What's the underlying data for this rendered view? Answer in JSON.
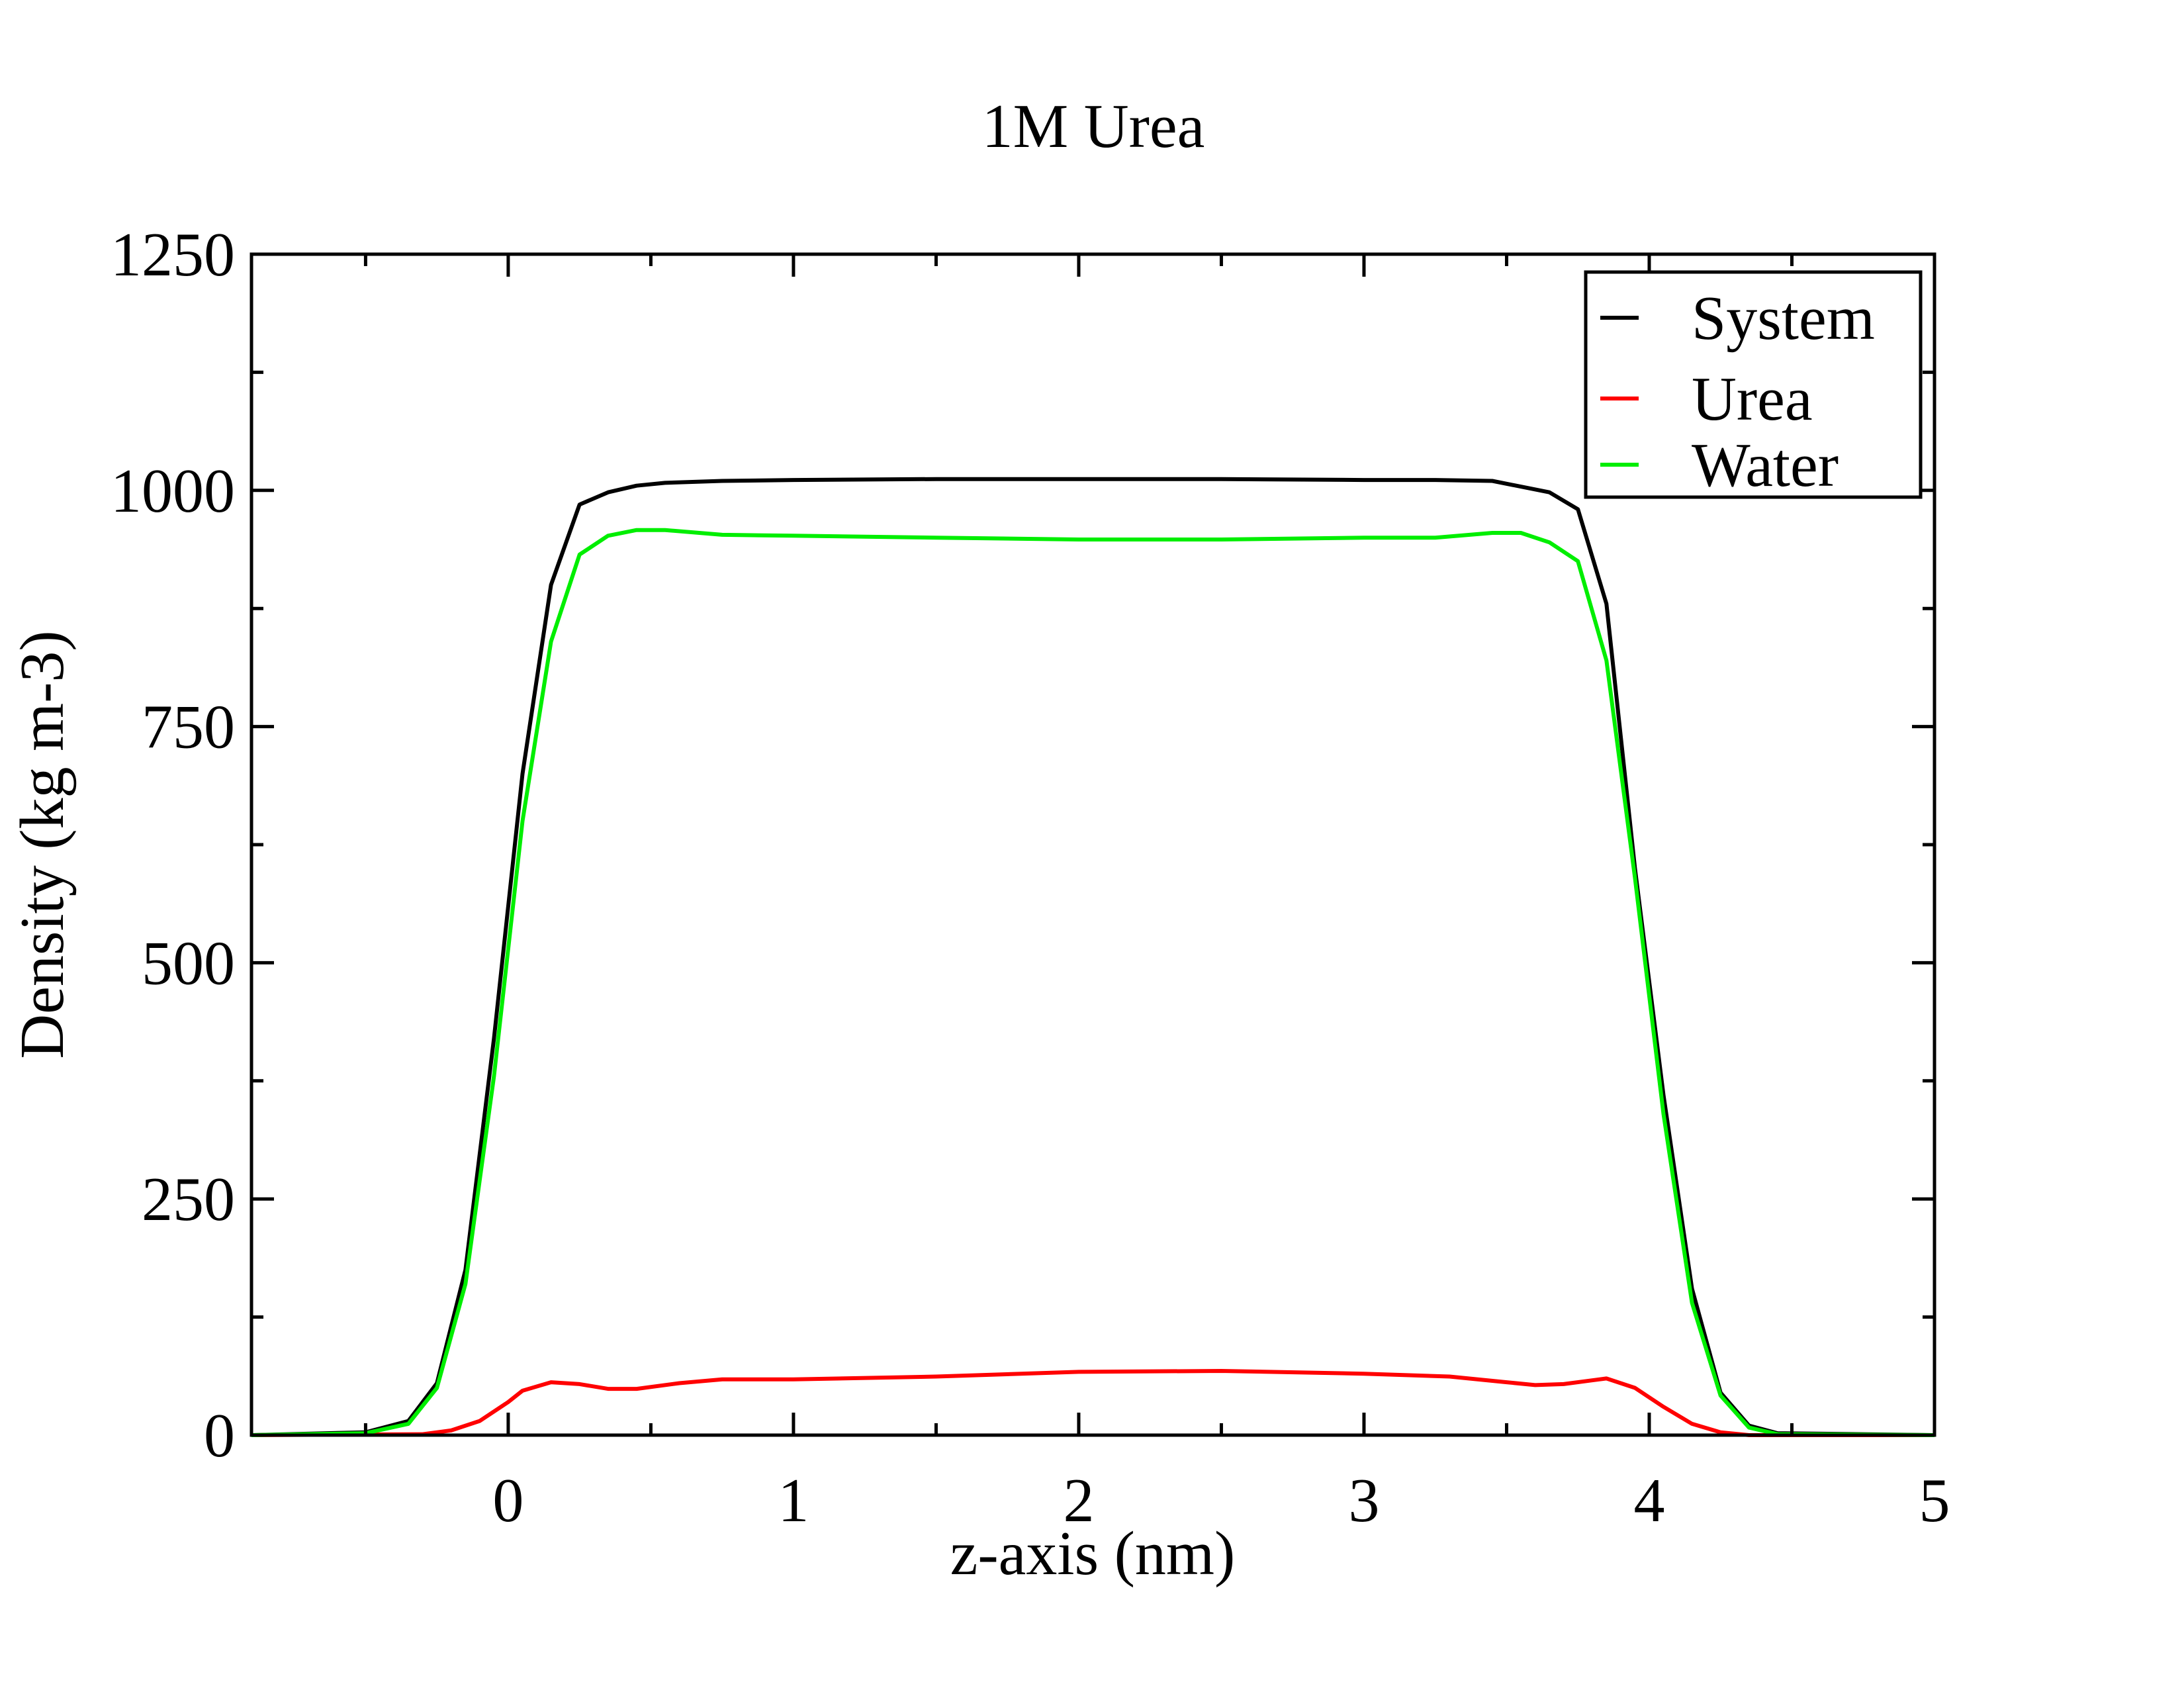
{
  "chart_data": {
    "type": "line",
    "title": "1M Urea",
    "xlabel": "z-axis (nm)",
    "ylabel": "Density (kg m-3)",
    "xlim": [
      -0.9,
      5
    ],
    "ylim": [
      0,
      1250
    ],
    "x_ticks": [
      0,
      1,
      2,
      3,
      4,
      5
    ],
    "y_ticks": [
      0,
      250,
      500,
      750,
      1000,
      1250
    ],
    "legend_position": "top-right",
    "grid": false,
    "series": [
      {
        "name": "System",
        "color": "#000000",
        "x": [
          -0.9,
          -0.5,
          -0.35,
          -0.25,
          -0.15,
          -0.05,
          0.05,
          0.15,
          0.25,
          0.35,
          0.45,
          0.55,
          0.75,
          1.0,
          1.5,
          2.0,
          2.5,
          3.0,
          3.25,
          3.45,
          3.65,
          3.75,
          3.85,
          3.95,
          4.05,
          4.15,
          4.25,
          4.35,
          4.45,
          5.0
        ],
        "y": [
          0,
          3,
          15,
          55,
          175,
          420,
          700,
          900,
          985,
          998,
          1005,
          1008,
          1010,
          1011,
          1012,
          1012,
          1012,
          1011,
          1011,
          1010,
          998,
          980,
          880,
          600,
          360,
          155,
          45,
          10,
          2,
          0
        ]
      },
      {
        "name": "Urea",
        "color": "#ff0000",
        "x": [
          -0.9,
          -0.3,
          -0.2,
          -0.1,
          0.0,
          0.05,
          0.15,
          0.25,
          0.35,
          0.45,
          0.6,
          0.75,
          1.0,
          1.5,
          2.0,
          2.5,
          3.0,
          3.3,
          3.5,
          3.6,
          3.7,
          3.8,
          3.85,
          3.95,
          4.05,
          4.15,
          4.25,
          4.35,
          5.0
        ],
        "y": [
          0,
          1,
          5,
          15,
          35,
          47,
          56,
          54,
          49,
          49,
          55,
          59,
          59,
          62,
          67,
          68,
          65,
          62,
          56,
          53,
          54,
          58,
          60,
          50,
          30,
          12,
          3,
          0,
          0
        ]
      },
      {
        "name": "Water",
        "color": "#00ee00",
        "x": [
          -0.9,
          -0.5,
          -0.35,
          -0.25,
          -0.15,
          -0.05,
          0.05,
          0.15,
          0.25,
          0.35,
          0.45,
          0.55,
          0.75,
          1.0,
          1.5,
          2.0,
          2.5,
          3.0,
          3.25,
          3.45,
          3.55,
          3.65,
          3.75,
          3.85,
          3.95,
          4.05,
          4.15,
          4.25,
          4.35,
          4.45,
          5.0
        ],
        "y": [
          0,
          2,
          12,
          50,
          160,
          380,
          650,
          840,
          932,
          952,
          958,
          958,
          953,
          952,
          950,
          948,
          948,
          950,
          950,
          955,
          955,
          945,
          925,
          820,
          590,
          340,
          140,
          42,
          8,
          1,
          0
        ]
      }
    ]
  }
}
